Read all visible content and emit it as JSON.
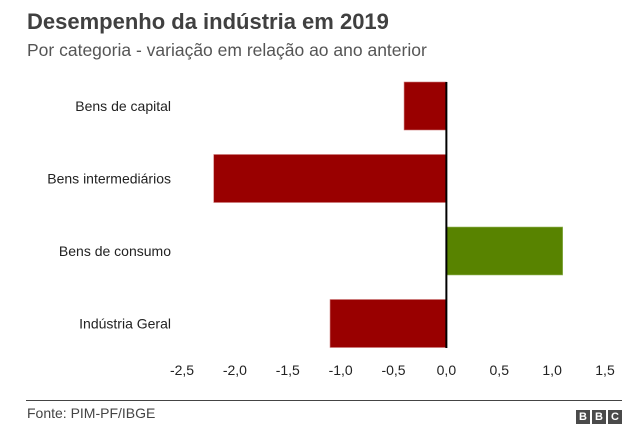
{
  "header": {
    "title": "Desempenho da indústria em 2019",
    "subtitle": "Por categoria - variação em relação ao ano anterior"
  },
  "footer": {
    "source": "Fonte: PIM-PF/IBGE",
    "logo_letters": [
      "B",
      "B",
      "C"
    ]
  },
  "chart_data": {
    "type": "bar",
    "orientation": "horizontal",
    "title": "Desempenho da indústria em 2019",
    "subtitle": "Por categoria - variação em relação ao ano anterior",
    "categories": [
      "Bens de capital",
      "Bens intermediários",
      "Bens de consumo",
      "Indústria Geral"
    ],
    "values": [
      -0.4,
      -2.2,
      1.1,
      -1.1
    ],
    "xlabel": "",
    "ylabel": "",
    "xlim": [
      -2.5,
      1.5
    ],
    "xticks": [
      -2.5,
      -2.0,
      -1.5,
      -1.0,
      -0.5,
      0.0,
      0.5,
      1.0,
      1.5
    ],
    "xtick_labels": [
      "-2,5",
      "-2,0",
      "-1,5",
      "-1,0",
      "-0,5",
      "0,0",
      "0,5",
      "1,0",
      "1,5"
    ],
    "grid": false,
    "legend": null,
    "colors": {
      "negative": "#990000",
      "positive": "#588300",
      "zero_line": "#000000"
    }
  }
}
